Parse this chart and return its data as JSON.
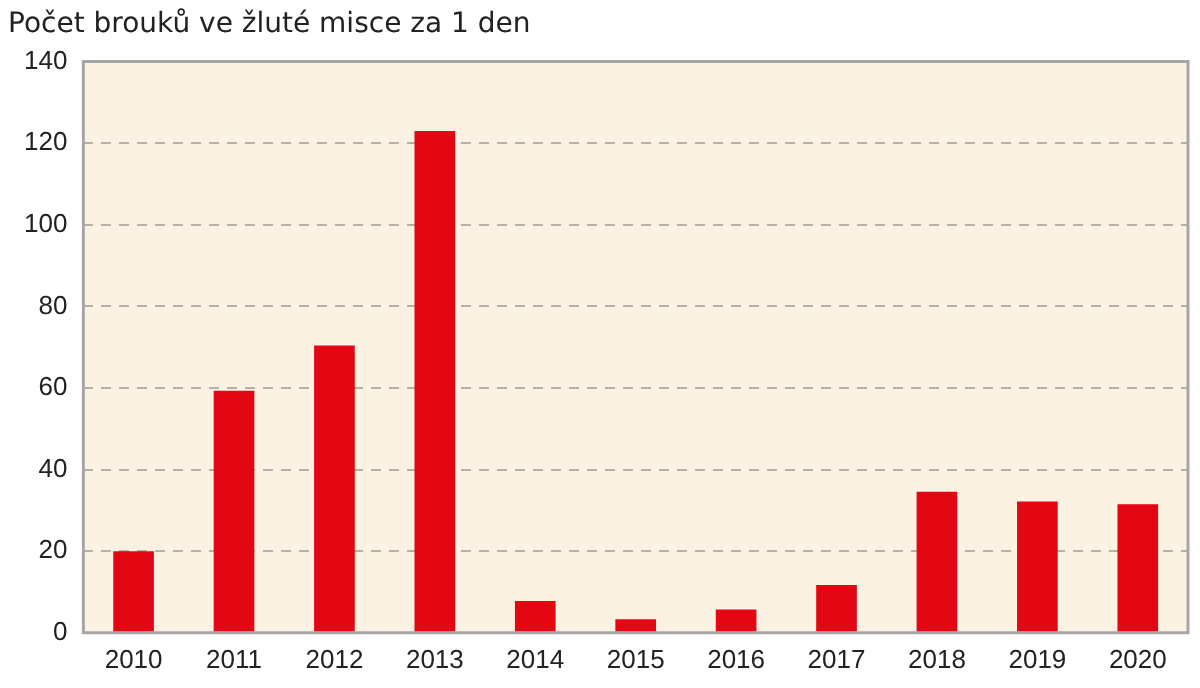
{
  "chart_data": {
    "type": "bar",
    "title": "Počet brouků ve žluté misce za 1 den",
    "categories": [
      "2010",
      "2011",
      "2012",
      "2013",
      "2014",
      "2015",
      "2016",
      "2017",
      "2018",
      "2019",
      "2020"
    ],
    "values": [
      20,
      59.3,
      70.4,
      123,
      7.8,
      3.3,
      5.7,
      11.7,
      34.6,
      32.2,
      31.5
    ],
    "color": "#e30613",
    "ylim": [
      0,
      140
    ],
    "yticks": [
      0,
      20,
      40,
      60,
      80,
      100,
      120,
      140
    ],
    "grid": "y"
  }
}
